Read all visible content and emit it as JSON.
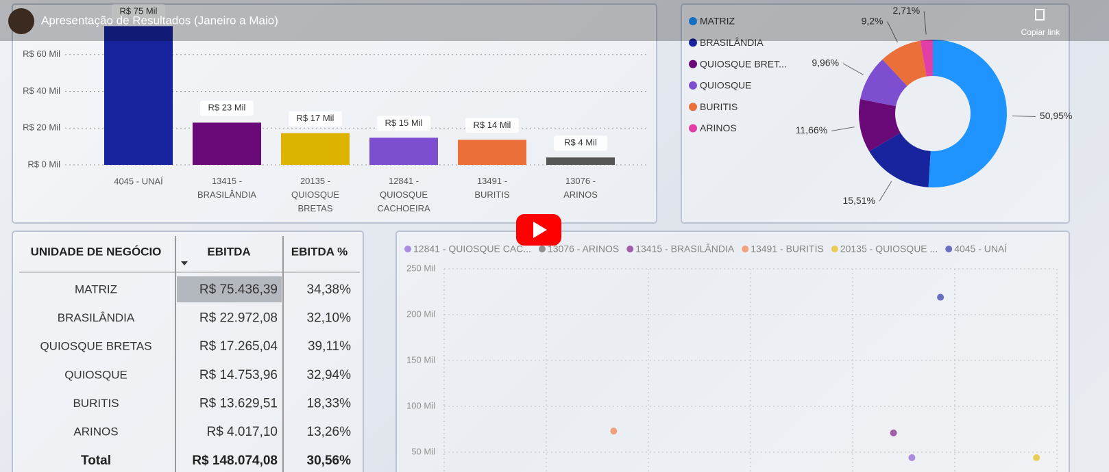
{
  "header": {
    "title": "Apresentação de Resultados (Janeiro a Maio)",
    "copy_link": "Copiar link"
  },
  "chart_data": [
    {
      "type": "bar",
      "categories": [
        "4045 - UNAÍ",
        "13415 - BRASILÂNDIA",
        "20135 - QUIOSQUE BRETAS",
        "12841 - QUIOSQUE CACHOEIRA",
        "13491 - BURITIS",
        "13076 - ARINOS"
      ],
      "values": [
        75436.39,
        22972.08,
        17265.04,
        14753.96,
        13629.51,
        4017.1
      ],
      "value_labels": [
        "R$ 75 Mil",
        "R$ 23 Mil",
        "R$ 17 Mil",
        "R$ 15 Mil",
        "R$ 14 Mil",
        "R$ 4 Mil"
      ],
      "colors": [
        "#17249e",
        "#6a0a78",
        "#dcb400",
        "#7d4fd0",
        "#ea6f38",
        "#555555"
      ],
      "ylim": [
        0,
        80000
      ],
      "yticks": [
        {
          "value": 0,
          "label": "R$ 0 Mil"
        },
        {
          "value": 20000,
          "label": "R$ 20 Mil"
        },
        {
          "value": 40000,
          "label": "R$ 40 Mil"
        },
        {
          "value": 60000,
          "label": "R$ 60 Mil"
        }
      ],
      "grid": true
    },
    {
      "type": "pie",
      "categories": [
        "MATRIZ",
        "BRASILÂNDIA",
        "QUIOSQUE BRET...",
        "QUIOSQUE",
        "BURITIS",
        "ARINOS"
      ],
      "values": [
        50.95,
        15.51,
        11.66,
        9.96,
        9.2,
        2.71
      ],
      "value_labels": [
        "50,95%",
        "15,51%",
        "11,66%",
        "9,96%",
        "9,2%",
        "2,71%"
      ],
      "colors": [
        "#1f94ff",
        "#17249e",
        "#6a0a78",
        "#7d4fd0",
        "#ea6f38",
        "#e23ea8"
      ],
      "donut": true
    },
    {
      "type": "scatter",
      "series": [
        {
          "name": "12841 - QUIOSQUE CAC...",
          "color": "#7d4fd0",
          "x": [
            4.58
          ],
          "values": [
            44000
          ]
        },
        {
          "name": "13076 - ARINOS",
          "color": "#555555",
          "x": [
            null
          ],
          "values": [
            null
          ]
        },
        {
          "name": "13415 - BRASILÂNDIA",
          "color": "#6a0a78",
          "x": [
            4.4
          ],
          "values": [
            71000
          ]
        },
        {
          "name": "13491 - BURITIS",
          "color": "#ea6f38",
          "x": [
            1.66
          ],
          "values": [
            73000
          ]
        },
        {
          "name": "20135 - QUIOSQUE ...",
          "color": "#dcb400",
          "x": [
            5.8
          ],
          "values": [
            44000
          ]
        },
        {
          "name": "4045 - UNAÍ",
          "color": "#17249e",
          "x": [
            4.86
          ],
          "values": [
            219000
          ]
        }
      ],
      "xlim": [
        0,
        6
      ],
      "xticks": [
        0,
        1,
        2,
        3,
        4,
        5,
        6
      ],
      "ylim": [
        0,
        250000
      ],
      "yticks": [
        {
          "value": 50000,
          "label": "50 Mil"
        },
        {
          "value": 100000,
          "label": "100 Mil"
        },
        {
          "value": 150000,
          "label": "150 Mil"
        },
        {
          "value": 200000,
          "label": "200 Mil"
        },
        {
          "value": 250000,
          "label": "250 Mil"
        }
      ],
      "grid": true
    }
  ],
  "table": {
    "columns": [
      "UNIDADE DE NEGÓCIO",
      "EBITDA",
      "EBITDA %"
    ],
    "rows": [
      [
        "MATRIZ",
        "R$ 75.436,39",
        "34,38%"
      ],
      [
        "BRASILÂNDIA",
        "R$ 22.972,08",
        "32,10%"
      ],
      [
        "QUIOSQUE BRETAS",
        "R$ 17.265,04",
        "39,11%"
      ],
      [
        "QUIOSQUE",
        "R$ 14.753,96",
        "32,94%"
      ],
      [
        "BURITIS",
        "R$ 13.629,51",
        "18,33%"
      ],
      [
        "ARINOS",
        "R$ 4.017,10",
        "13,26%"
      ]
    ],
    "total": [
      "Total",
      "R$ 148.074,08",
      "30,56%"
    ]
  }
}
